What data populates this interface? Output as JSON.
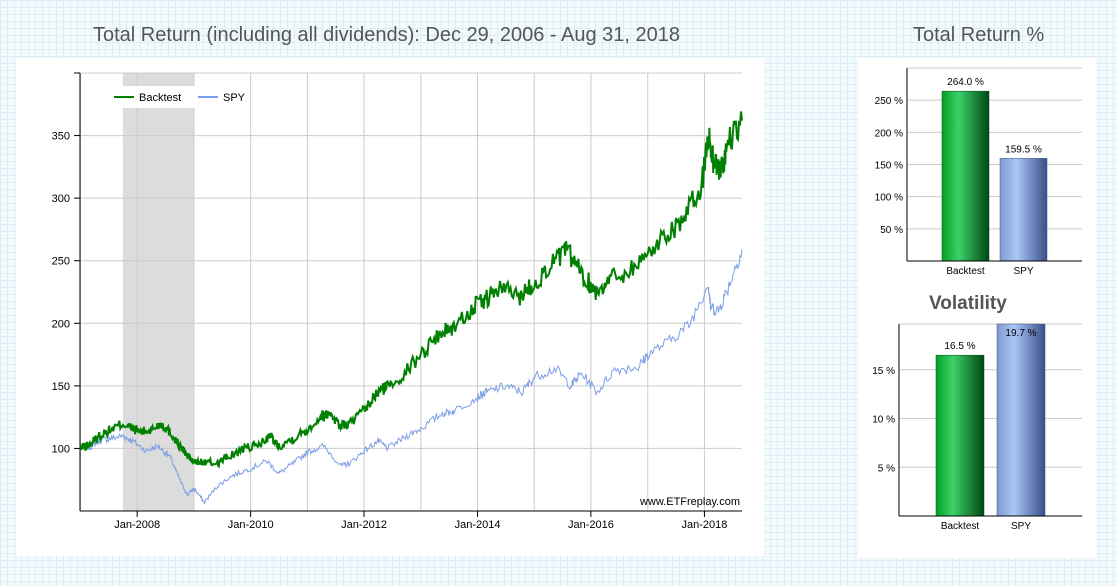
{
  "main_chart": {
    "title": "Total Return (including all dividends): Dec 29, 2006 - Aug 31, 2018",
    "watermark": "www.ETFreplay.com"
  },
  "side": {
    "return_title": "Total Return %",
    "volatility_title": "Volatility"
  },
  "colors": {
    "backtest": "#008000",
    "spy": "#7b9fe6",
    "shade": "#dcdcdc",
    "grid": "#cccccc"
  },
  "chart_data": [
    {
      "type": "line",
      "title": "Total Return (including all dividends): Dec 29, 2006 - Aug 31, 2018",
      "x_ticks": [
        "Jan-2008",
        "Jan-2010",
        "Jan-2012",
        "Jan-2014",
        "Jan-2016",
        "Jan-2018"
      ],
      "y_ticks": [
        100,
        150,
        200,
        250,
        300,
        350
      ],
      "xlim": [
        "2006-12-29",
        "2018-08-31"
      ],
      "ylim": [
        50,
        400
      ],
      "grid": true,
      "legend": "top-left",
      "shaded_period": [
        "2007-10-01",
        "2008-12-31"
      ],
      "series": [
        {
          "name": "Backtest",
          "color": "#008000",
          "points": [
            [
              "2006-12-29",
              100
            ],
            [
              "2007-03-01",
              103
            ],
            [
              "2007-05-01",
              110
            ],
            [
              "2007-07-15",
              115
            ],
            [
              "2007-10-01",
              120
            ],
            [
              "2007-12-01",
              116
            ],
            [
              "2008-02-01",
              113
            ],
            [
              "2008-04-01",
              115
            ],
            [
              "2008-06-01",
              120
            ],
            [
              "2008-08-01",
              113
            ],
            [
              "2008-10-01",
              102
            ],
            [
              "2008-11-15",
              95
            ],
            [
              "2008-12-31",
              89
            ],
            [
              "2009-03-01",
              89
            ],
            [
              "2009-06-01",
              88
            ],
            [
              "2009-08-01",
              93
            ],
            [
              "2009-12-01",
              100
            ],
            [
              "2010-03-01",
              103
            ],
            [
              "2010-05-01",
              110
            ],
            [
              "2010-07-01",
              102
            ],
            [
              "2010-10-01",
              108
            ],
            [
              "2011-01-01",
              115
            ],
            [
              "2011-04-01",
              126
            ],
            [
              "2011-06-01",
              128
            ],
            [
              "2011-08-01",
              118
            ],
            [
              "2011-10-01",
              120
            ],
            [
              "2012-01-01",
              130
            ],
            [
              "2012-04-01",
              145
            ],
            [
              "2012-06-01",
              150
            ],
            [
              "2012-09-01",
              158
            ],
            [
              "2013-01-01",
              175
            ],
            [
              "2013-05-01",
              192
            ],
            [
              "2013-08-01",
              197
            ],
            [
              "2013-12-01",
              212
            ],
            [
              "2014-03-01",
              220
            ],
            [
              "2014-06-01",
              228
            ],
            [
              "2014-10-01",
              222
            ],
            [
              "2015-01-01",
              232
            ],
            [
              "2015-05-01",
              248
            ],
            [
              "2015-08-01",
              258
            ],
            [
              "2015-11-01",
              240
            ],
            [
              "2016-02-01",
              225
            ],
            [
              "2016-05-01",
              236
            ],
            [
              "2016-09-01",
              242
            ],
            [
              "2017-01-01",
              255
            ],
            [
              "2017-05-01",
              272
            ],
            [
              "2017-09-01",
              285
            ],
            [
              "2017-12-15",
              310
            ],
            [
              "2018-01-26",
              350
            ],
            [
              "2018-03-01",
              330
            ],
            [
              "2018-04-15",
              322
            ],
            [
              "2018-06-01",
              342
            ],
            [
              "2018-08-31",
              362
            ]
          ]
        },
        {
          "name": "SPY",
          "color": "#7b9fe6",
          "points": [
            [
              "2006-12-29",
              100
            ],
            [
              "2007-03-01",
              101
            ],
            [
              "2007-05-01",
              106
            ],
            [
              "2007-07-15",
              108
            ],
            [
              "2007-10-01",
              110
            ],
            [
              "2007-12-01",
              106
            ],
            [
              "2008-03-01",
              98
            ],
            [
              "2008-05-15",
              102
            ],
            [
              "2008-08-01",
              93
            ],
            [
              "2008-10-01",
              75
            ],
            [
              "2008-11-20",
              63
            ],
            [
              "2009-01-01",
              68
            ],
            [
              "2009-03-09",
              57
            ],
            [
              "2009-06-01",
              70
            ],
            [
              "2009-09-01",
              78
            ],
            [
              "2010-01-01",
              84
            ],
            [
              "2010-04-15",
              90
            ],
            [
              "2010-07-01",
              80
            ],
            [
              "2010-10-01",
              88
            ],
            [
              "2011-01-01",
              97
            ],
            [
              "2011-04-15",
              102
            ],
            [
              "2011-08-08",
              86
            ],
            [
              "2011-10-01",
              88
            ],
            [
              "2012-01-01",
              98
            ],
            [
              "2012-04-01",
              106
            ],
            [
              "2012-06-01",
              100
            ],
            [
              "2012-10-01",
              110
            ],
            [
              "2013-01-01",
              116
            ],
            [
              "2013-05-20",
              128
            ],
            [
              "2013-08-01",
              130
            ],
            [
              "2013-12-31",
              141
            ],
            [
              "2014-03-01",
              145
            ],
            [
              "2014-07-01",
              150
            ],
            [
              "2014-10-15",
              145
            ],
            [
              "2015-01-01",
              157
            ],
            [
              "2015-05-20",
              164
            ],
            [
              "2015-08-25",
              150
            ],
            [
              "2015-11-01",
              160
            ],
            [
              "2016-02-11",
              145
            ],
            [
              "2016-06-01",
              163
            ],
            [
              "2016-11-01",
              165
            ],
            [
              "2017-01-01",
              175
            ],
            [
              "2017-06-01",
              187
            ],
            [
              "2017-10-01",
              200
            ],
            [
              "2018-01-26",
              232
            ],
            [
              "2018-02-09",
              213
            ],
            [
              "2018-04-01",
              210
            ],
            [
              "2018-06-01",
              228
            ],
            [
              "2018-08-31",
              259
            ]
          ]
        }
      ]
    },
    {
      "type": "bar",
      "title": "Total Return %",
      "categories": [
        "Backtest",
        "SPY"
      ],
      "values": [
        264.0,
        159.5
      ],
      "value_labels": [
        "264.0 %",
        "159.5 %"
      ],
      "y_ticks": [
        50,
        100,
        150,
        200,
        250
      ],
      "y_tick_labels": [
        "50 %",
        "100 %",
        "150 %",
        "200 %",
        "250 %"
      ],
      "ylim": [
        0,
        300
      ]
    },
    {
      "type": "bar",
      "title": "Volatility",
      "categories": [
        "Backtest",
        "SPY"
      ],
      "values": [
        16.5,
        19.7
      ],
      "value_labels": [
        "16.5 %",
        "19.7 %"
      ],
      "y_ticks": [
        5,
        10,
        15
      ],
      "y_tick_labels": [
        "5 %",
        "10 %",
        "15 %"
      ],
      "ylim": [
        0,
        19.7
      ]
    }
  ]
}
